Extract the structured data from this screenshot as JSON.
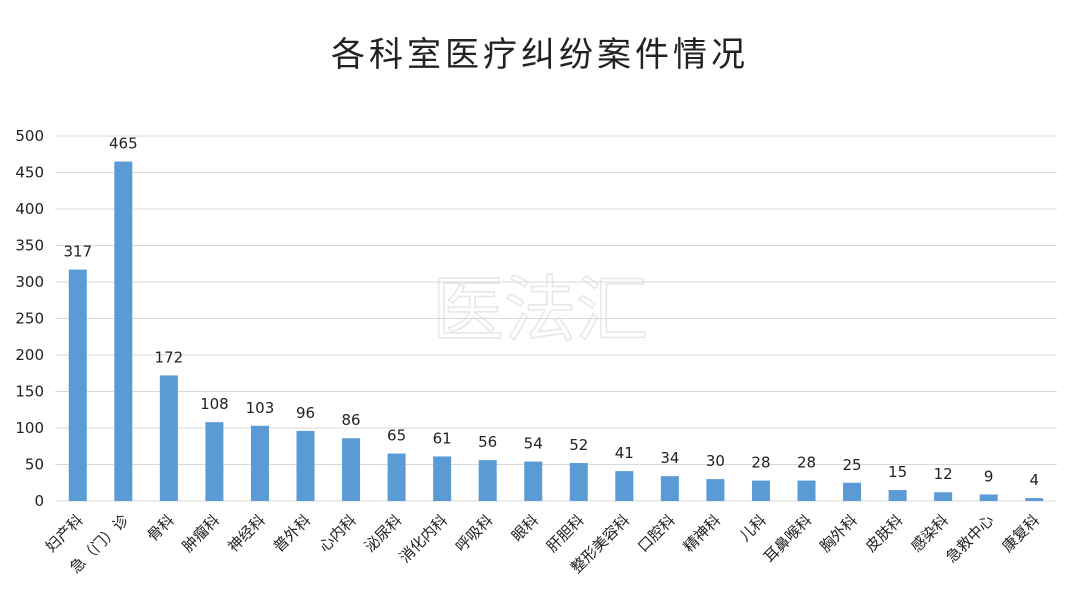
{
  "chart_data": {
    "type": "bar",
    "title": "各科室医疗纠纷案件情况",
    "watermark": "医法汇",
    "categories": [
      "妇产科",
      "急（门）诊",
      "骨科",
      "肿瘤科",
      "神经科",
      "普外科",
      "心内科",
      "泌尿科",
      "消化内科",
      "呼吸科",
      "眼科",
      "肝胆科",
      "整形美容科",
      "口腔科",
      "精神科",
      "儿科",
      "耳鼻喉科",
      "胸外科",
      "皮肤科",
      "感染科",
      "急救中心",
      "康复科"
    ],
    "values": [
      317,
      465,
      172,
      108,
      103,
      96,
      86,
      65,
      61,
      56,
      54,
      52,
      41,
      34,
      30,
      28,
      28,
      25,
      15,
      12,
      9,
      4
    ],
    "yticks": [
      0,
      50,
      100,
      150,
      200,
      250,
      300,
      350,
      400,
      450,
      500
    ],
    "ylim": [
      0,
      500
    ],
    "xlabel": "",
    "ylabel": "",
    "grid": true,
    "legend": "none",
    "bar_color": "#5b9bd5",
    "grid_color": "#d9d9d9"
  }
}
